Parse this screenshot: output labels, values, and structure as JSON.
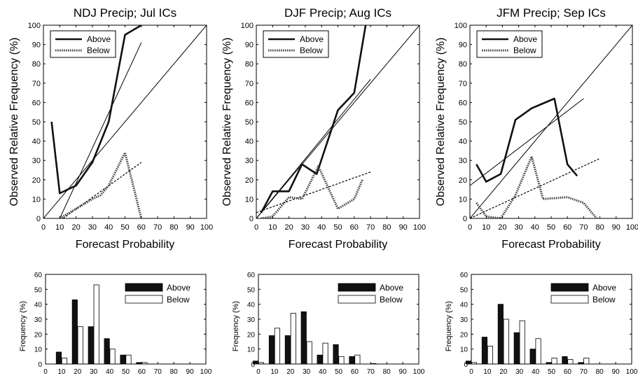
{
  "chart_data": [
    {
      "type": "line",
      "title": "NDJ Precip; Jul ICs",
      "xlabel": "Forecast Probability",
      "ylabel": "Observed Relative Frequency (%)",
      "xlim": [
        0,
        100
      ],
      "ylim": [
        0,
        100
      ],
      "xticks": [
        0,
        10,
        20,
        30,
        40,
        50,
        60,
        70,
        80,
        90,
        100
      ],
      "yticks": [
        0,
        10,
        20,
        30,
        40,
        50,
        60,
        70,
        80,
        90,
        100
      ],
      "grid": false,
      "legend": "top-left",
      "legend_labels": [
        "Above",
        "Below"
      ],
      "series": [
        {
          "name": "Above",
          "style": "solid",
          "x": [
            5,
            10,
            20,
            30,
            40,
            50,
            60
          ],
          "y": [
            50,
            13,
            17,
            29,
            50,
            95,
            100
          ]
        },
        {
          "name": "Below",
          "style": "dotted",
          "x": [
            10,
            20,
            30,
            35,
            40,
            50,
            60
          ],
          "y": [
            0,
            5,
            10,
            12,
            17,
            34,
            0
          ]
        }
      ],
      "fits": [
        {
          "style": "thin",
          "x": [
            10,
            60
          ],
          "y": [
            0,
            91
          ]
        },
        {
          "style": "dashed",
          "x": [
            12,
            60
          ],
          "y": [
            0,
            29
          ]
        }
      ],
      "diagonal": true
    },
    {
      "type": "line",
      "title": "DJF Precip; Aug ICs",
      "xlabel": "Forecast Probability",
      "ylabel": "Observed Relative Frequency (%)",
      "xlim": [
        0,
        100
      ],
      "ylim": [
        0,
        100
      ],
      "xticks": [
        0,
        10,
        20,
        30,
        40,
        50,
        60,
        70,
        80,
        90,
        100
      ],
      "yticks": [
        0,
        10,
        20,
        30,
        40,
        50,
        60,
        70,
        80,
        90,
        100
      ],
      "grid": false,
      "legend": "top-right",
      "legend_labels": [
        "Above",
        "Below"
      ],
      "series": [
        {
          "name": "Above",
          "style": "solid",
          "x": [
            3,
            10,
            20,
            28,
            37,
            50,
            60,
            67
          ],
          "y": [
            3,
            14,
            14,
            28,
            23,
            56,
            65,
            100
          ]
        },
        {
          "name": "Below",
          "style": "dotted",
          "x": [
            3,
            10,
            20,
            28,
            38,
            50,
            60,
            65
          ],
          "y": [
            0,
            1,
            11,
            10,
            27,
            5,
            10,
            20
          ]
        }
      ],
      "fits": [
        {
          "style": "thin",
          "x": [
            0,
            70
          ],
          "y": [
            0,
            72
          ]
        },
        {
          "style": "dashed",
          "x": [
            0,
            70
          ],
          "y": [
            3,
            24
          ]
        }
      ],
      "diagonal": true
    },
    {
      "type": "line",
      "title": "JFM Precip; Sep ICs",
      "xlabel": "Forecast Probability",
      "ylabel": "Observed Relative Frequency (%)",
      "xlim": [
        0,
        100
      ],
      "ylim": [
        0,
        100
      ],
      "xticks": [
        0,
        10,
        20,
        30,
        40,
        50,
        60,
        70,
        80,
        90,
        100
      ],
      "yticks": [
        0,
        10,
        20,
        30,
        40,
        50,
        60,
        70,
        80,
        90,
        100
      ],
      "grid": false,
      "legend": "top-left",
      "legend_labels": [
        "Above",
        "Below"
      ],
      "series": [
        {
          "name": "Above",
          "style": "solid",
          "x": [
            4,
            10,
            19,
            28,
            38,
            52,
            60,
            66
          ],
          "y": [
            28,
            19,
            23,
            51,
            57,
            62,
            28,
            22
          ]
        },
        {
          "name": "Below",
          "style": "dotted",
          "x": [
            4,
            10,
            19,
            28,
            38,
            45,
            60,
            70,
            78
          ],
          "y": [
            8,
            1,
            0,
            12,
            32,
            10,
            11,
            8,
            0
          ]
        }
      ],
      "fits": [
        {
          "style": "thin",
          "x": [
            0,
            70
          ],
          "y": [
            17,
            62
          ]
        },
        {
          "style": "dashed",
          "x": [
            0,
            80
          ],
          "y": [
            0,
            31
          ]
        }
      ],
      "diagonal": true
    },
    {
      "type": "bar",
      "xlabel": "",
      "ylabel": "Frequency (%)",
      "xlim": [
        0,
        100
      ],
      "ylim": [
        0,
        60
      ],
      "xticks": [
        0,
        10,
        20,
        30,
        40,
        50,
        60,
        70,
        80,
        90,
        100
      ],
      "yticks": [
        0,
        10,
        20,
        30,
        40,
        50,
        60
      ],
      "legend": "top-right",
      "legend_labels": [
        "Above",
        "Below"
      ],
      "categories": [
        10,
        20,
        30,
        40,
        50,
        60
      ],
      "series": [
        {
          "name": "Above",
          "values": [
            8,
            43,
            25,
            17,
            6,
            1
          ]
        },
        {
          "name": "Below",
          "values": [
            4,
            25,
            53,
            10,
            6,
            1
          ]
        }
      ]
    },
    {
      "type": "bar",
      "xlabel": "",
      "ylabel": "Frequency (%)",
      "xlim": [
        0,
        100
      ],
      "ylim": [
        0,
        60
      ],
      "xticks": [
        0,
        10,
        20,
        30,
        40,
        50,
        60,
        70,
        80,
        90,
        100
      ],
      "yticks": [
        0,
        10,
        20,
        30,
        40,
        50,
        60
      ],
      "legend": "top-right",
      "legend_labels": [
        "Above",
        "Below"
      ],
      "categories": [
        0,
        10,
        20,
        30,
        40,
        50,
        60,
        70
      ],
      "series": [
        {
          "name": "Above",
          "values": [
            2,
            19,
            19,
            35,
            6,
            13,
            5,
            0
          ]
        },
        {
          "name": "Below",
          "values": [
            1,
            24,
            34,
            15,
            14,
            5,
            6,
            0.3
          ]
        }
      ]
    },
    {
      "type": "bar",
      "xlabel": "",
      "ylabel": "Frequency (%)",
      "xlim": [
        0,
        100
      ],
      "ylim": [
        0,
        60
      ],
      "xticks": [
        0,
        10,
        20,
        30,
        40,
        50,
        60,
        70,
        80,
        90,
        100
      ],
      "yticks": [
        0,
        10,
        20,
        30,
        40,
        50,
        60
      ],
      "legend": "top-right",
      "legend_labels": [
        "Above",
        "Below"
      ],
      "categories": [
        0,
        10,
        20,
        30,
        40,
        50,
        60,
        70
      ],
      "series": [
        {
          "name": "Above",
          "values": [
            2,
            18,
            40,
            21,
            10,
            1,
            5,
            1
          ]
        },
        {
          "name": "Below",
          "values": [
            1,
            12,
            30,
            29,
            17,
            4,
            3,
            4
          ]
        }
      ]
    }
  ]
}
